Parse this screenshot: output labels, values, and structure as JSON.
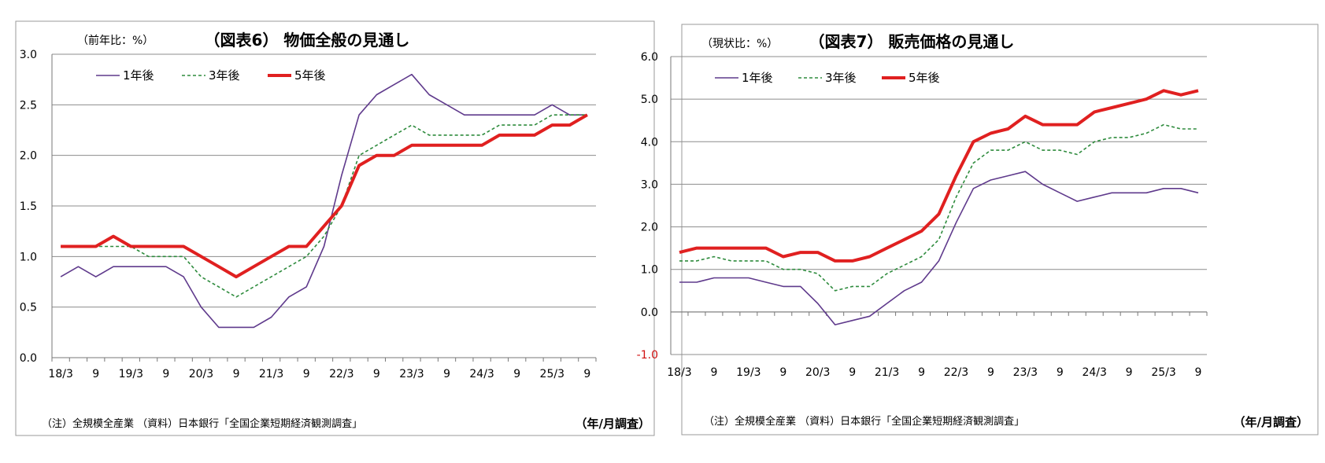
{
  "chart_data": [
    {
      "type": "line",
      "title": "（図表6） 物価全般の見通し",
      "unit_label": "（前年比：%）",
      "xlabel": "（年/月調査）",
      "note": "（注）全規模全産業 （資料）日本銀行「全国企業短期経済観測調査」",
      "categories": [
        "18/3",
        "18/6",
        "18/9",
        "18/12",
        "19/3",
        "19/6",
        "19/9",
        "19/12",
        "20/3",
        "20/6",
        "20/9",
        "20/12",
        "21/3",
        "21/6",
        "21/9",
        "21/12",
        "22/3",
        "22/6",
        "22/9",
        "22/12",
        "23/3",
        "23/6",
        "23/9",
        "23/12",
        "24/3",
        "24/6",
        "24/9",
        "24/12",
        "25/3",
        "25/6",
        "25/9"
      ],
      "tick_labels": [
        "18/3",
        "9",
        "19/3",
        "9",
        "20/3",
        "9",
        "21/3",
        "9",
        "22/3",
        "9",
        "23/3",
        "9",
        "24/3",
        "9",
        "25/3",
        "9"
      ],
      "ylim": [
        0.0,
        3.0
      ],
      "yticks": [
        "0.0",
        "0.5",
        "1.0",
        "1.5",
        "2.0",
        "2.5",
        "3.0"
      ],
      "grid": true,
      "legend_placement": "top-left",
      "series": [
        {
          "name": "1年後",
          "color": "#5f3a8c",
          "style": "solid",
          "weight": "thin",
          "values": [
            0.8,
            0.9,
            0.8,
            0.9,
            0.9,
            0.9,
            0.9,
            0.8,
            0.5,
            0.3,
            0.3,
            0.3,
            0.4,
            0.6,
            0.7,
            1.1,
            1.8,
            2.4,
            2.6,
            2.7,
            2.8,
            2.6,
            2.5,
            2.4,
            2.4,
            2.4,
            2.4,
            2.4,
            2.5,
            2.4,
            2.4
          ]
        },
        {
          "name": "3年後",
          "color": "#2e8b3d",
          "style": "dashed",
          "weight": "thin",
          "values": [
            1.1,
            1.1,
            1.1,
            1.1,
            1.1,
            1.0,
            1.0,
            1.0,
            0.8,
            0.7,
            0.6,
            0.7,
            0.8,
            0.9,
            1.0,
            1.2,
            1.5,
            2.0,
            2.1,
            2.2,
            2.3,
            2.2,
            2.2,
            2.2,
            2.2,
            2.3,
            2.3,
            2.3,
            2.4,
            2.4,
            2.4
          ]
        },
        {
          "name": "5年後",
          "color": "#e02020",
          "style": "solid",
          "weight": "thick",
          "values": [
            1.1,
            1.1,
            1.1,
            1.2,
            1.1,
            1.1,
            1.1,
            1.1,
            1.0,
            0.9,
            0.8,
            0.9,
            1.0,
            1.1,
            1.1,
            1.3,
            1.5,
            1.9,
            2.0,
            2.0,
            2.1,
            2.1,
            2.1,
            2.1,
            2.1,
            2.2,
            2.2,
            2.2,
            2.3,
            2.3,
            2.4
          ]
        }
      ]
    },
    {
      "type": "line",
      "title": "（図表7） 販売価格の見通し",
      "unit_label": "（現状比：%）",
      "xlabel": "（年/月調査）",
      "note": "（注）全規模全産業 （資料）日本銀行「全国企業短期経済観測調査」",
      "categories": [
        "18/3",
        "18/6",
        "18/9",
        "18/12",
        "19/3",
        "19/6",
        "19/9",
        "19/12",
        "20/3",
        "20/6",
        "20/9",
        "20/12",
        "21/3",
        "21/6",
        "21/9",
        "21/12",
        "22/3",
        "22/6",
        "22/9",
        "22/12",
        "23/3",
        "23/6",
        "23/9",
        "23/12",
        "24/3",
        "24/6",
        "24/9",
        "24/12",
        "25/3",
        "25/6",
        "25/9"
      ],
      "tick_labels": [
        "18/3",
        "9",
        "19/3",
        "9",
        "20/3",
        "9",
        "21/3",
        "9",
        "22/3",
        "9",
        "23/3",
        "9",
        "24/3",
        "9",
        "25/3",
        "9"
      ],
      "ylim": [
        -1.0,
        6.0
      ],
      "yticks": [
        "-1.0",
        "0.0",
        "1.0",
        "2.0",
        "3.0",
        "4.0",
        "5.0",
        "6.0"
      ],
      "grid": true,
      "legend_placement": "top-left",
      "series": [
        {
          "name": "1年後",
          "color": "#5f3a8c",
          "style": "solid",
          "weight": "thin",
          "values": [
            0.7,
            0.7,
            0.8,
            0.8,
            0.8,
            0.7,
            0.6,
            0.6,
            0.2,
            -0.3,
            -0.2,
            -0.1,
            0.2,
            0.5,
            0.7,
            1.2,
            2.1,
            2.9,
            3.1,
            3.2,
            3.3,
            3.0,
            2.8,
            2.6,
            2.7,
            2.8,
            2.8,
            2.8,
            2.9,
            2.9,
            2.8
          ]
        },
        {
          "name": "3年後",
          "color": "#2e8b3d",
          "style": "dashed",
          "weight": "thin",
          "values": [
            1.2,
            1.2,
            1.3,
            1.2,
            1.2,
            1.2,
            1.0,
            1.0,
            0.9,
            0.5,
            0.6,
            0.6,
            0.9,
            1.1,
            1.3,
            1.7,
            2.7,
            3.5,
            3.8,
            3.8,
            4.0,
            3.8,
            3.8,
            3.7,
            4.0,
            4.1,
            4.1,
            4.2,
            4.4,
            4.3,
            4.3
          ]
        },
        {
          "name": "5年後",
          "color": "#e02020",
          "style": "solid",
          "weight": "thick",
          "values": [
            1.4,
            1.5,
            1.5,
            1.5,
            1.5,
            1.5,
            1.3,
            1.4,
            1.4,
            1.2,
            1.2,
            1.3,
            1.5,
            1.7,
            1.9,
            2.3,
            3.2,
            4.0,
            4.2,
            4.3,
            4.6,
            4.4,
            4.4,
            4.4,
            4.7,
            4.8,
            4.9,
            5.0,
            5.2,
            5.1,
            5.2
          ]
        }
      ]
    }
  ]
}
